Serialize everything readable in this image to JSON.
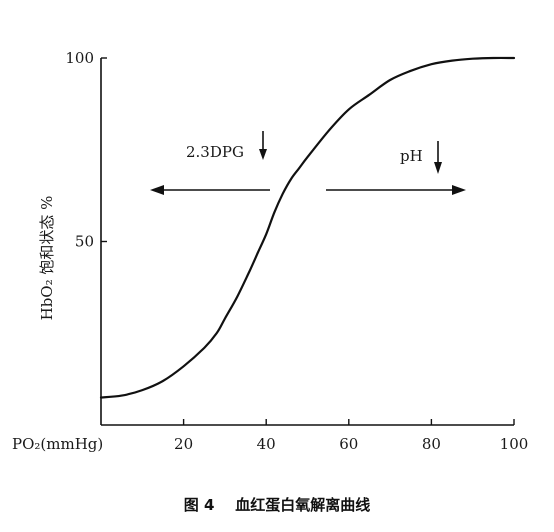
{
  "chart_data": {
    "type": "line",
    "ylabel": "HbO₂ 饱和状态 %",
    "xlabel_prefix": "PO₂(mmHg)",
    "x_ticks": [
      20,
      40,
      60,
      80,
      100
    ],
    "y_ticks": [
      50,
      100
    ],
    "xlim": [
      0,
      100
    ],
    "ylim": [
      0,
      100
    ],
    "series": [
      {
        "x": [
          0,
          5,
          10,
          15,
          20,
          25,
          28,
          30,
          33,
          36,
          38,
          40,
          42,
          44,
          46,
          48,
          50,
          55,
          60,
          65,
          70,
          75,
          80,
          85,
          90,
          95,
          100
        ],
        "y": [
          7.5,
          8,
          9.5,
          12,
          16,
          21,
          25,
          29,
          35,
          42,
          47,
          52,
          58,
          63,
          67,
          70,
          73,
          80,
          86,
          90,
          94,
          96.5,
          98.3,
          99.3,
          99.8,
          100,
          100
        ]
      }
    ],
    "annotations": {
      "left": "2.3DPG",
      "right": "pH"
    },
    "caption": "图 4    血红蛋白氧解离曲线"
  }
}
